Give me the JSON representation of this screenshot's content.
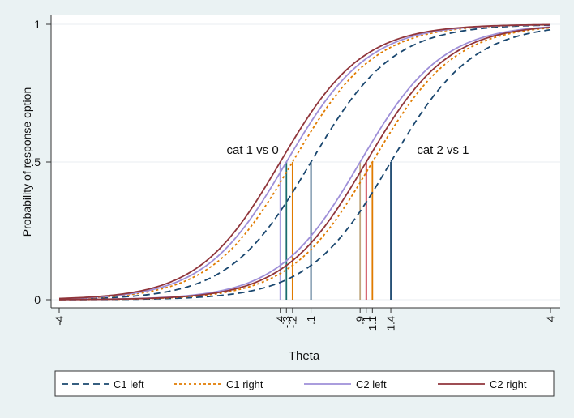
{
  "chart_data": {
    "type": "line",
    "title": "",
    "xlabel": "Theta",
    "ylabel": "Probability of response option",
    "xlim": [
      -4,
      4
    ],
    "ylim": [
      0,
      1
    ],
    "x_ticks": [
      {
        "value": -4,
        "label": "-4"
      },
      {
        "value": -0.4,
        "label": "-.4"
      },
      {
        "value": -0.3,
        "label": "-.3"
      },
      {
        "value": -0.2,
        "label": "-.2"
      },
      {
        "value": 0.1,
        "label": ".1"
      },
      {
        "value": 0.9,
        "label": ".9"
      },
      {
        "value": 1.0,
        "label": "1"
      },
      {
        "value": 1.1,
        "label": "1.1"
      },
      {
        "value": 1.4,
        "label": "1.4"
      },
      {
        "value": 4,
        "label": "4"
      }
    ],
    "y_ticks": [
      {
        "value": 0,
        "label": "0"
      },
      {
        "value": 0.5,
        "label": ".5"
      },
      {
        "value": 1,
        "label": "1"
      }
    ],
    "grid": "horizontal",
    "legend_position": "bottom",
    "annotations": [
      {
        "text": "cat 1 vs 0",
        "x": -0.85,
        "y": 0.53
      },
      {
        "text": "cat 2 vs 1",
        "x": 2.25,
        "y": 0.53
      }
    ],
    "series": [
      {
        "name": "C1 left",
        "color": "#1a476f",
        "dash": "dash",
        "slope": 1.5,
        "thresholds": [
          0.1,
          1.4
        ]
      },
      {
        "name": "C1 right",
        "color": "#e07b00",
        "dash": "dot",
        "slope": 1.5,
        "thresholds": [
          -0.2,
          1.1
        ]
      },
      {
        "name": "C2 left",
        "color": "#9e8fd8",
        "dash": "solid",
        "slope": 1.5,
        "thresholds": [
          -0.3,
          0.9
        ]
      },
      {
        "name": "C2 right",
        "color": "#90353b",
        "dash": "solid",
        "slope": 1.5,
        "thresholds": [
          -0.4,
          1.0
        ]
      }
    ],
    "threshold_lines": [
      {
        "x": -0.4,
        "color": "#a9a0e0"
      },
      {
        "x": -0.3,
        "color": "#1a6d6d"
      },
      {
        "x": -0.2,
        "color": "#e07b00"
      },
      {
        "x": 0.1,
        "color": "#1a476f"
      },
      {
        "x": 0.9,
        "color": "#c0a87f"
      },
      {
        "x": 1.0,
        "color": "#c0182a"
      },
      {
        "x": 1.1,
        "color": "#e07b00"
      },
      {
        "x": 1.4,
        "color": "#1a476f"
      }
    ]
  }
}
